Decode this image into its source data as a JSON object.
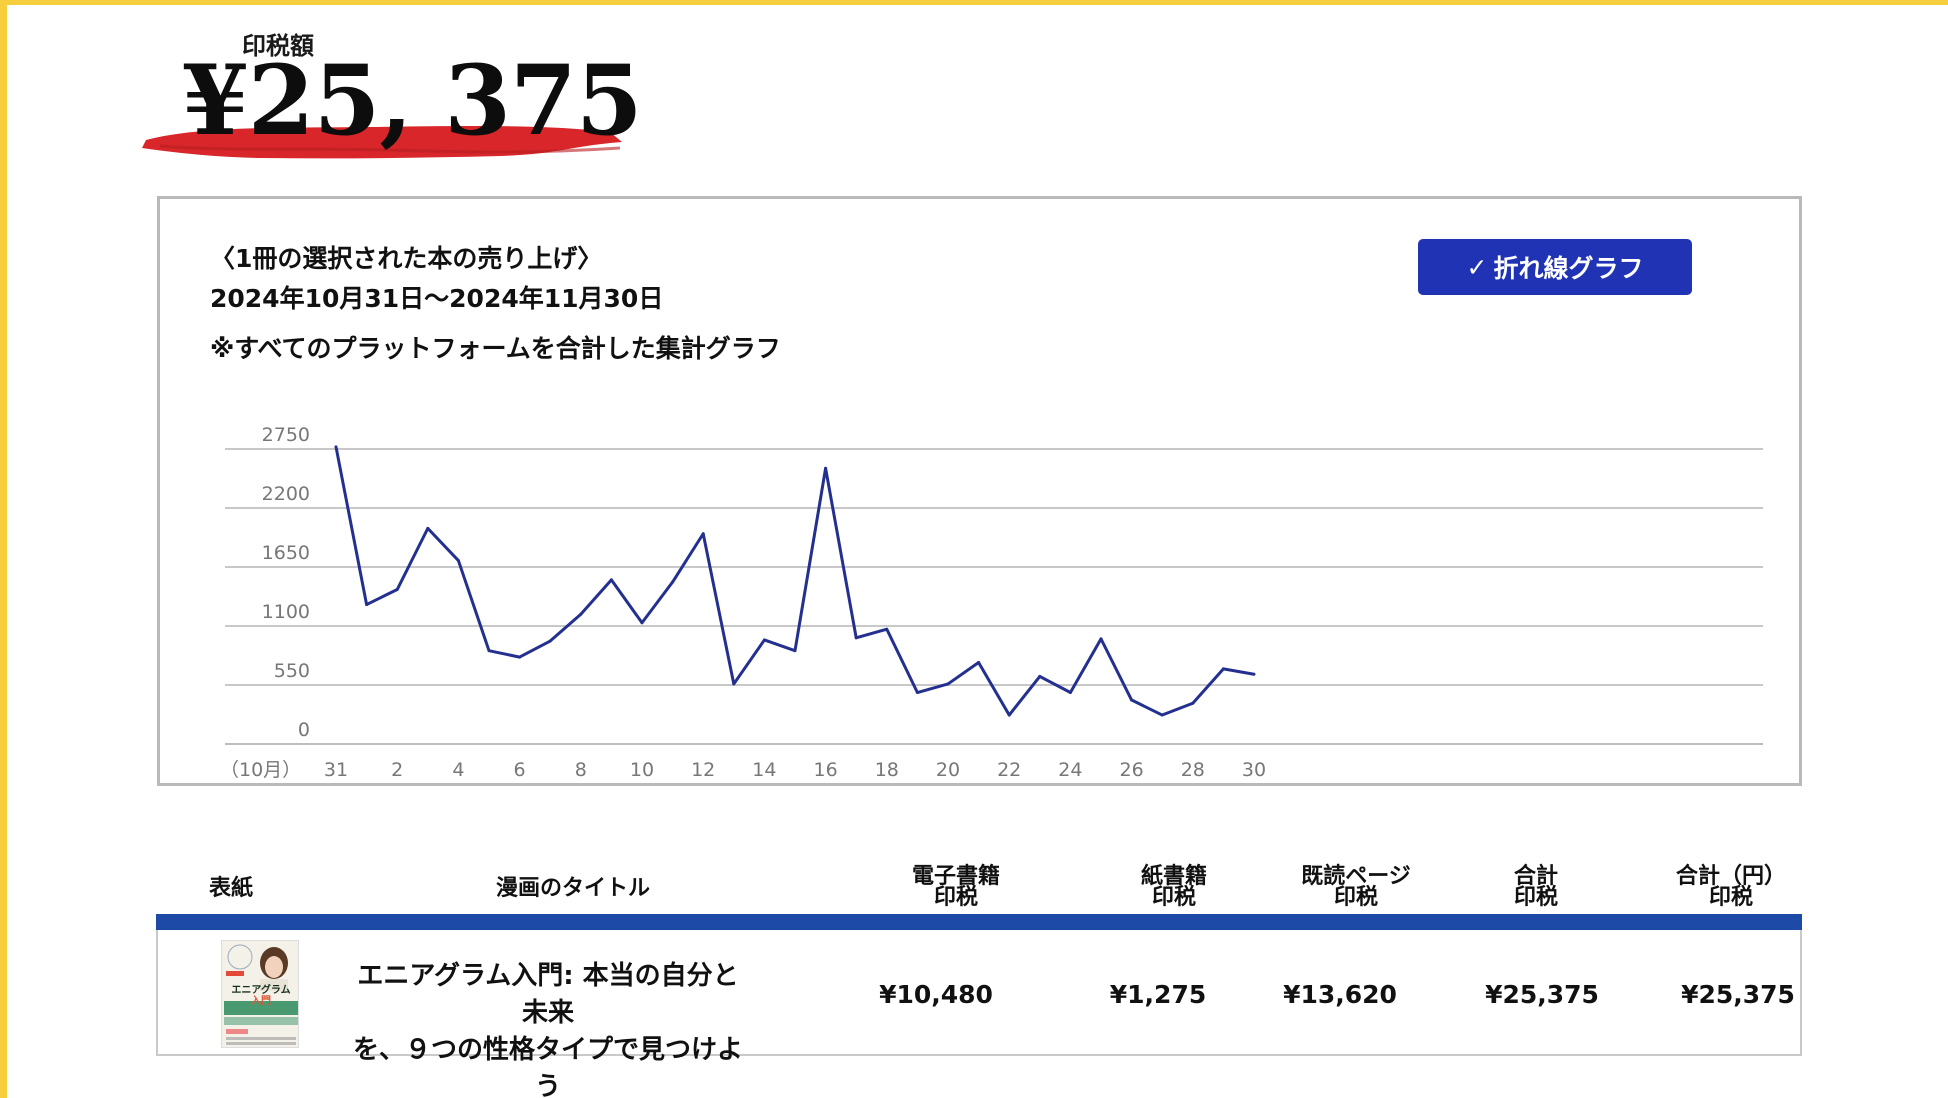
{
  "royalty": {
    "label": "印税額",
    "amount": "¥25, 375"
  },
  "chart_card": {
    "heading": "〈1冊の選択された本の売り上げ〉",
    "date_range": "2024年10月31日〜2024年11月30日",
    "note": "※すべてのプラットフォームを合計した集計グラフ",
    "toggle_label": "折れ線グラフ",
    "toggle_icon": "check-icon"
  },
  "chart_data": {
    "type": "line",
    "title": "",
    "xlabel": "",
    "ylabel": "",
    "x_prefix_label": "（10月）",
    "x": [
      "31",
      "1",
      "2",
      "3",
      "4",
      "5",
      "6",
      "7",
      "8",
      "9",
      "10",
      "11",
      "12",
      "13",
      "14",
      "15",
      "16",
      "17",
      "18",
      "19",
      "20",
      "21",
      "22",
      "23",
      "24",
      "25",
      "26",
      "27",
      "28",
      "29",
      "30"
    ],
    "x_tick_labels": [
      "31",
      "2",
      "4",
      "6",
      "8",
      "10",
      "12",
      "14",
      "16",
      "18",
      "20",
      "22",
      "24",
      "26",
      "28",
      "30"
    ],
    "y_ticks": [
      0,
      550,
      1100,
      1650,
      2200,
      2750
    ],
    "ylim": [
      0,
      2750
    ],
    "grid": true,
    "line_color": "#24308f",
    "series": [
      {
        "name": "",
        "values": [
          2770,
          1300,
          1440,
          2010,
          1710,
          870,
          810,
          960,
          1210,
          1530,
          1130,
          1510,
          1960,
          560,
          970,
          870,
          2570,
          990,
          1070,
          480,
          560,
          760,
          270,
          630,
          480,
          980,
          410,
          270,
          380,
          700,
          650
        ]
      }
    ]
  },
  "table": {
    "headers": {
      "cover": "表紙",
      "title": "漫画のタイトル",
      "ebook": [
        "電子書籍",
        "印税"
      ],
      "paper": [
        "紙書籍",
        "印税"
      ],
      "pages_read": [
        "既読ページ",
        "印税"
      ],
      "total": [
        "合計",
        "印税"
      ],
      "total_yen": [
        "合計（円）",
        "印税"
      ]
    },
    "rows": [
      {
        "cover_text": [
          "エニアグラム",
          "入門"
        ],
        "title_line1": "エニアグラム入門: 本当の自分と未来",
        "title_line2": "を、９つの性格タイプで見つけよう",
        "ebook": "¥10,480",
        "paper": "¥1,275",
        "pages_read": "¥13,620",
        "total": "¥25,375",
        "total_yen": "¥25,375"
      }
    ]
  },
  "colors": {
    "accent_blue": "#1f33b4",
    "frame_yellow": "#f6cf3e",
    "brush_red": "#d8262a"
  }
}
